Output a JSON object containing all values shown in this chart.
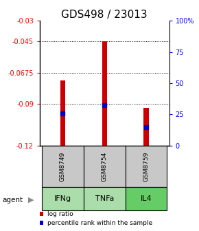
{
  "title": "GDS498 / 23013",
  "samples": [
    "GSM8749",
    "GSM8754",
    "GSM8759"
  ],
  "agents": [
    "IFNg",
    "TNFa",
    "IL4"
  ],
  "bar_bottom": -0.12,
  "bar_tops": [
    -0.073,
    -0.045,
    -0.093
  ],
  "percentile_values": [
    -0.097,
    -0.091,
    -0.107
  ],
  "ylim_left": [
    -0.12,
    -0.03
  ],
  "yticks_left": [
    -0.12,
    -0.09,
    -0.0675,
    -0.045,
    -0.03
  ],
  "ytick_labels_left": [
    "-0.12",
    "-0.09",
    "-0.0675",
    "-0.045",
    "-0.03"
  ],
  "ylim_right": [
    0,
    100
  ],
  "yticks_right": [
    0,
    25,
    50,
    75,
    100
  ],
  "ytick_labels_right": [
    "0",
    "25",
    "50",
    "75",
    "100%"
  ],
  "bar_color": "#cc0000",
  "percentile_color": "#0000cc",
  "sample_cell_color": "#c8c8c8",
  "agent_cell_colors": [
    "#aaddaa",
    "#aaddaa",
    "#66cc66"
  ],
  "legend_bar_label": "log ratio",
  "legend_pct_label": "percentile rank within the sample",
  "agent_label": "agent",
  "background_color": "#ffffff",
  "title_fontsize": 11,
  "tick_fontsize": 7,
  "label_fontsize": 8,
  "bar_width": 0.12
}
